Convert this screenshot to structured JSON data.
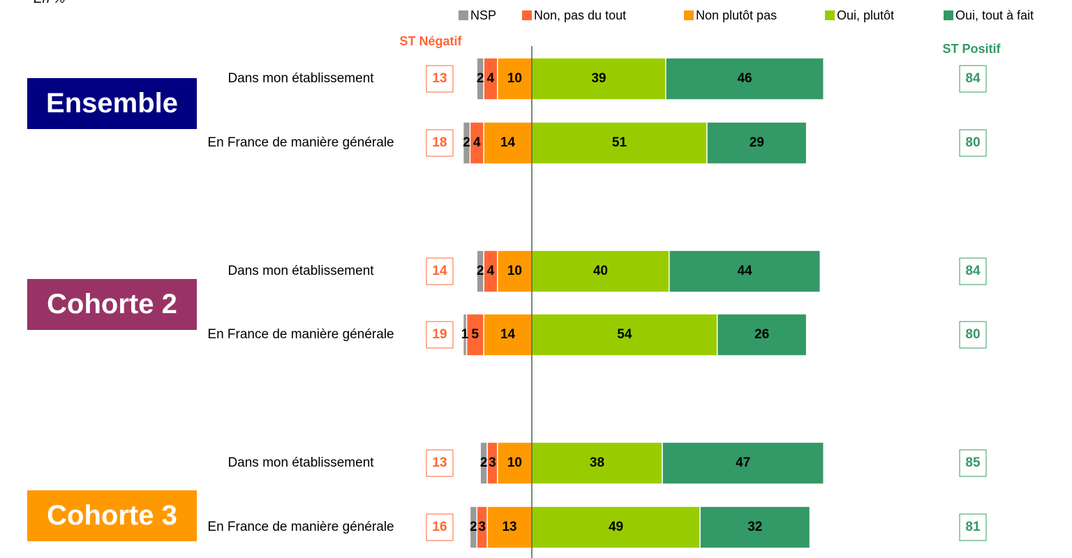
{
  "chart_data": {
    "type": "diverging_bar",
    "note": "En %",
    "groups": [
      {
        "name": "Ensemble",
        "color": "#000080"
      },
      {
        "name": "Cohorte 2",
        "color": "#993366"
      },
      {
        "name": "Cohorte 3",
        "color": "#FF9900"
      }
    ],
    "categories": [
      "Dans mon établissement",
      "En France de manière générale",
      "Dans mon établissement",
      "En France de manière générale",
      "Dans mon établissement",
      "En France de manière générale"
    ],
    "series": [
      {
        "name": "NSP",
        "color": "#999999",
        "side": "negative",
        "values": [
          2,
          2,
          2,
          1,
          2,
          2
        ]
      },
      {
        "name": "Non, pas du tout",
        "color": "#FF6633",
        "side": "negative",
        "values": [
          4,
          4,
          4,
          5,
          3,
          3
        ]
      },
      {
        "name": "Non plutôt pas",
        "color": "#FF9900",
        "side": "negative",
        "values": [
          10,
          14,
          10,
          14,
          10,
          13
        ]
      },
      {
        "name": "Oui, plutôt",
        "color": "#99CC00",
        "side": "positive",
        "values": [
          39,
          51,
          40,
          54,
          38,
          49
        ]
      },
      {
        "name": "Oui, tout à fait",
        "color": "#339966",
        "side": "positive",
        "values": [
          46,
          29,
          44,
          26,
          47,
          32
        ]
      }
    ],
    "st_negatif": {
      "label": "ST Négatif",
      "color": "#FF6633",
      "values": [
        13,
        18,
        14,
        19,
        13,
        16
      ]
    },
    "st_positif": {
      "label": "ST Positif",
      "color": "#339966",
      "values": [
        84,
        80,
        84,
        80,
        85,
        81
      ]
    }
  }
}
